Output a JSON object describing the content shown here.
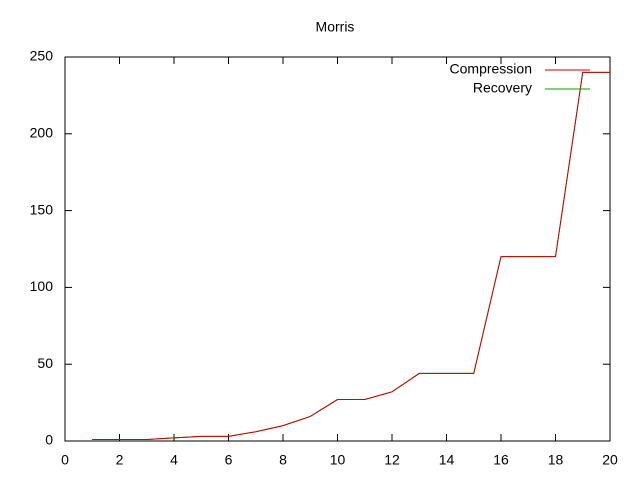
{
  "chart_data": {
    "type": "line",
    "title": "Morris",
    "x": [
      1,
      2,
      3,
      4,
      5,
      6,
      7,
      8,
      9,
      10,
      11,
      12,
      13,
      14,
      15,
      16,
      17,
      18,
      19,
      20
    ],
    "series": [
      {
        "name": "Compression",
        "color": "#cc0000",
        "values": [
          1,
          1,
          1,
          2,
          3,
          3,
          6,
          10,
          16,
          27,
          27,
          32,
          44,
          44,
          44,
          120,
          120,
          120,
          240,
          240
        ]
      },
      {
        "name": "Recovery",
        "color": "#00a000",
        "values": [
          1,
          1,
          1,
          2,
          3,
          3,
          6,
          10,
          16,
          27,
          27,
          32,
          44,
          44,
          44,
          120,
          120,
          120,
          240,
          240
        ]
      }
    ],
    "xlim": [
      0,
      20
    ],
    "xticks": [
      0,
      2,
      4,
      6,
      8,
      10,
      12,
      14,
      16,
      18,
      20
    ],
    "ylim": [
      0,
      250
    ],
    "yticks": [
      0,
      50,
      100,
      150,
      200,
      250
    ],
    "legend": "top-right"
  }
}
